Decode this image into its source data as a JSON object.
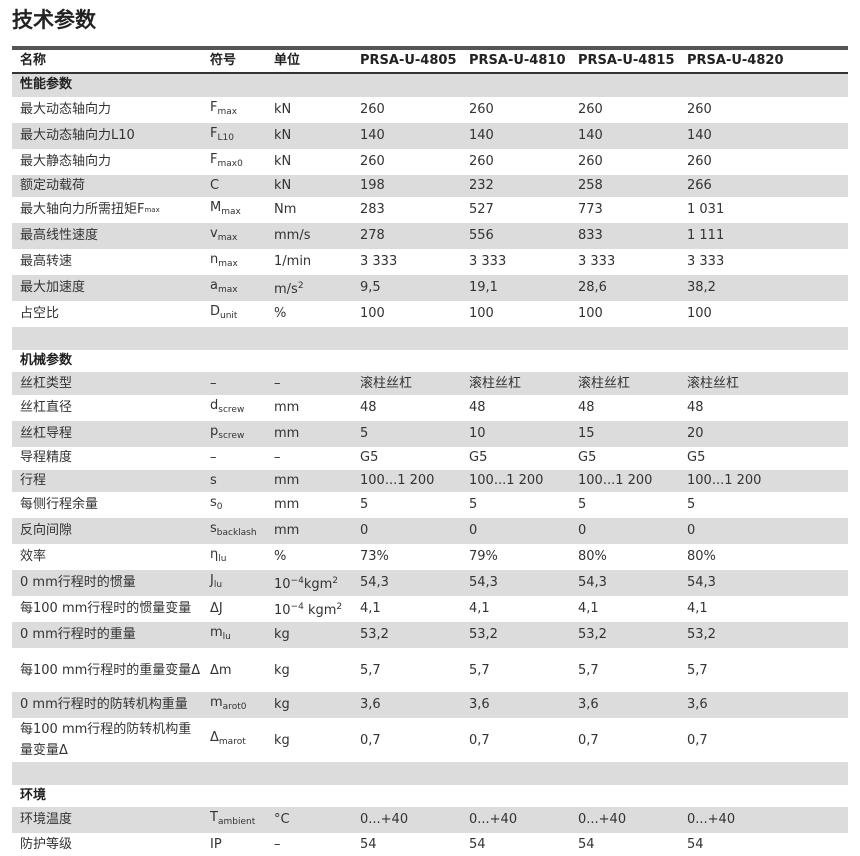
{
  "title": "技术参数",
  "header": [
    "名称",
    "符号",
    "单位",
    "PRSA-U-4805",
    "PRSA-U-4810",
    "PRSA-U-4815",
    "PRSA-U-4820"
  ],
  "rows": [
    {
      "type": "sec",
      "name": "性能参数"
    },
    {
      "name": "最大动态轴向力",
      "sym": "F",
      "sub": "max",
      "unit": "kN",
      "v": [
        "260",
        "260",
        "260",
        "260"
      ]
    },
    {
      "name": "最大动态轴向力L10",
      "sym": "F",
      "sub": "L10",
      "unit": "kN",
      "v": [
        "140",
        "140",
        "140",
        "140"
      ]
    },
    {
      "name": "最大静态轴向力",
      "sym": "F",
      "sub": "max0",
      "unit": "kN",
      "v": [
        "260",
        "260",
        "260",
        "260"
      ]
    },
    {
      "name": "额定动载荷",
      "sym": "C",
      "sub": "",
      "unit": "kN",
      "v": [
        "198",
        "232",
        "258",
        "266"
      ]
    },
    {
      "name": "最大轴向力所需扭矩F",
      "name_sub": "max",
      "sym": "M",
      "sub": "max",
      "unit": "Nm",
      "v": [
        "283",
        "527",
        "773",
        "1 031"
      ]
    },
    {
      "name": "最高线性速度",
      "sym": "v",
      "sub": "max",
      "unit": "mm/s",
      "v": [
        "278",
        "556",
        "833",
        "1 111"
      ]
    },
    {
      "name": "最高转速",
      "sym": "n",
      "sub": "max",
      "unit": "1/min",
      "v": [
        "3 333",
        "3 333",
        "3 333",
        "3 333"
      ]
    },
    {
      "name": "最大加速度",
      "sym": "a",
      "sub": "max",
      "unit": "m/s",
      "unit_sup": "2",
      "v": [
        "9,5",
        "19,1",
        "28,6",
        "38,2"
      ]
    },
    {
      "name": "占空比",
      "sym": "D",
      "sub": "unit",
      "unit": "%",
      "v": [
        "100",
        "100",
        "100",
        "100"
      ]
    },
    {
      "type": "blank"
    },
    {
      "type": "sec",
      "name": "机械参数"
    },
    {
      "name": "丝杠类型",
      "sym": "–",
      "sub": "",
      "unit": "–",
      "v": [
        "滚柱丝杠",
        "滚柱丝杠",
        "滚柱丝杠",
        "滚柱丝杠"
      ]
    },
    {
      "name": "丝杠直径",
      "sym": "d",
      "sub": "screw",
      "unit": "mm",
      "v": [
        "48",
        "48",
        "48",
        "48"
      ]
    },
    {
      "name": "丝杠导程",
      "sym": "p",
      "sub": "screw",
      "unit": "mm",
      "v": [
        "5",
        "10",
        "15",
        "20"
      ]
    },
    {
      "name": "导程精度",
      "sym": "–",
      "sub": "",
      "unit": "–",
      "v": [
        "G5",
        "G5",
        "G5",
        "G5"
      ]
    },
    {
      "name": "行程",
      "sym": "s",
      "sub": "",
      "unit": "mm",
      "v": [
        "100...1 200",
        "100...1 200",
        "100...1 200",
        "100...1 200"
      ]
    },
    {
      "name": "每侧行程余量",
      "sym": "s",
      "sub": "0",
      "unit": "mm",
      "v": [
        "5",
        "5",
        "5",
        "5"
      ]
    },
    {
      "name": "反向间隙",
      "sym": "s",
      "sub": "backlash",
      "unit": "mm",
      "v": [
        "0",
        "0",
        "0",
        "0"
      ]
    },
    {
      "name": "效率",
      "sym": "η",
      "sub": "lu",
      "unit": "%",
      "v": [
        "73%",
        "79%",
        "80%",
        "80%"
      ]
    },
    {
      "name": "0 mm行程时的惯量",
      "sym": "J",
      "sub": "lu",
      "unit": "10",
      "unit_sup": "−4",
      "unit2": "kgm",
      "unit2_sup": "2",
      "v": [
        "54,3",
        "54,3",
        "54,3",
        "54,3"
      ]
    },
    {
      "name": "每100 mm行程时的惯量变量",
      "sym": "ΔJ",
      "sub": "",
      "unit": "10",
      "unit_sup": "−4",
      "unit2": " kgm",
      "unit2_sup": "2",
      "v": [
        "4,1",
        "4,1",
        "4,1",
        "4,1"
      ]
    },
    {
      "name": "0 mm行程时的重量",
      "sym": "m",
      "sub": "lu",
      "unit": "kg",
      "v": [
        "53,2",
        "53,2",
        "53,2",
        "53,2"
      ]
    },
    {
      "type": "tall",
      "name": "每100 mm行程时的重量变量Δ",
      "sym": "Δm",
      "sub": "",
      "unit": "kg",
      "v": [
        "5,7",
        "5,7",
        "5,7",
        "5,7"
      ]
    },
    {
      "name": "0 mm行程时的防转机构重量",
      "sym": "m",
      "sub": "arot0",
      "unit": "kg",
      "v": [
        "3,6",
        "3,6",
        "3,6",
        "3,6"
      ]
    },
    {
      "type": "tall",
      "name": "每100 mm行程的防转机构重量变量Δ",
      "sym": "Δ",
      "sub": "marot",
      "unit": "kg",
      "v": [
        "0,7",
        "0,7",
        "0,7",
        "0,7"
      ]
    },
    {
      "type": "blank"
    },
    {
      "type": "sec",
      "name": "环境"
    },
    {
      "name": "环境温度",
      "sym": "T",
      "sub": "ambient",
      "unit": "°C",
      "v": [
        "0...+40",
        "0...+40",
        "0...+40",
        "0...+40"
      ]
    },
    {
      "name": "防护等级",
      "sym": "IP",
      "sub": "",
      "unit": "–",
      "v": [
        "54",
        "54",
        "54",
        "54"
      ]
    }
  ]
}
